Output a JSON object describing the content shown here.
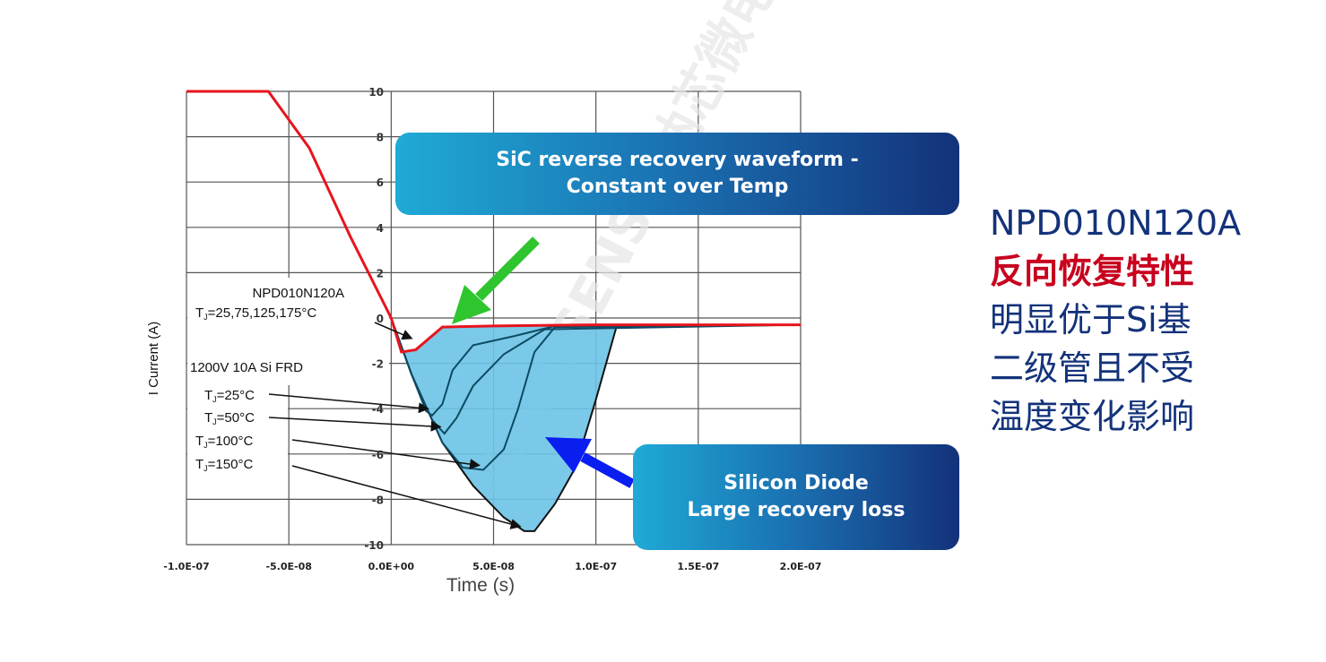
{
  "chart_data": {
    "type": "line",
    "xlabel": "Time (s)",
    "ylabel": "I Current (A)",
    "xlim": [
      -1e-07,
      2e-07
    ],
    "ylim": [
      -10,
      10
    ],
    "x_ticks": [
      "-1.0E-07",
      "-5.0E-08",
      "0.0E+00",
      "5.0E-08",
      "1.0E-07",
      "1.5E-07",
      "2.0E-07"
    ],
    "x_tick_values": [
      -1e-07,
      -5e-08,
      0,
      5e-08,
      1e-07,
      1.5e-07,
      2e-07
    ],
    "y_ticks": [
      "10",
      "8",
      "6",
      "4",
      "2",
      "0",
      "-2",
      "-4",
      "-6",
      "-8",
      "-10"
    ],
    "y_tick_values": [
      10,
      8,
      6,
      4,
      2,
      0,
      -2,
      -4,
      -6,
      -8,
      -10
    ],
    "grid": true,
    "colors": {
      "sic": "#e8141c",
      "si": "#0d4a63",
      "fill": "#6cc3e6",
      "green_arrow": "#2ec52e",
      "blue_arrow": "#0a1ef0"
    },
    "series": [
      {
        "name": "NPD010N120A",
        "color": "#e8141c",
        "x": [
          -1e-07,
          -6e-08,
          -4e-08,
          -2e-08,
          0,
          5e-09,
          1.2e-08,
          2.5e-08,
          5e-08,
          1e-07,
          1.5e-07,
          2e-07
        ],
        "y": [
          10,
          10,
          7.5,
          3.6,
          0,
          -1.5,
          -1.4,
          -0.4,
          -0.35,
          -0.3,
          -0.3,
          -0.3
        ]
      },
      {
        "name": "TJ=25°C",
        "color": "#0d4a63",
        "x": [
          -1e-07,
          -6e-08,
          -4e-08,
          -2e-08,
          0,
          1e-08,
          1.7e-08,
          2e-08,
          2.5e-08,
          3e-08,
          4e-08,
          6e-08,
          8e-08,
          2e-07
        ],
        "y": [
          10,
          10,
          7.5,
          3.6,
          0,
          -2.5,
          -4.1,
          -4.3,
          -3.8,
          -2.3,
          -1.2,
          -0.8,
          -0.35,
          -0.3
        ]
      },
      {
        "name": "TJ=50°C",
        "color": "#0d4a63",
        "x": [
          -1e-07,
          -6e-08,
          -4e-08,
          -2e-08,
          0,
          1e-08,
          2e-08,
          2.6e-08,
          3.2e-08,
          4e-08,
          5.5e-08,
          7.5e-08,
          2e-07
        ],
        "y": [
          10,
          10,
          7.5,
          3.6,
          0,
          -2.5,
          -4.5,
          -5.1,
          -4.4,
          -3.0,
          -1.6,
          -0.5,
          -0.3
        ]
      },
      {
        "name": "TJ=100°C",
        "color": "#0d4a63",
        "x": [
          -1e-07,
          -6e-08,
          -4e-08,
          -2e-08,
          0,
          1e-08,
          2.5e-08,
          3.5e-08,
          4.5e-08,
          5.5e-08,
          6.2e-08,
          7e-08,
          8e-08,
          2e-07
        ],
        "y": [
          10,
          10,
          7.5,
          3.6,
          0,
          -2.5,
          -5.5,
          -6.6,
          -6.7,
          -5.8,
          -4.0,
          -1.5,
          -0.4,
          -0.3
        ]
      },
      {
        "name": "TJ=150°C",
        "color": "#0d4a63",
        "x": [
          -1e-07,
          -6e-08,
          -4e-08,
          -2e-08,
          0,
          1e-08,
          2.5e-08,
          4e-08,
          5.5e-08,
          6.5e-08,
          7e-08,
          8e-08,
          9e-08,
          1e-07,
          1.1e-07,
          2e-07
        ],
        "y": [
          10,
          10,
          7.5,
          3.6,
          0,
          -2.5,
          -5.5,
          -7.4,
          -8.8,
          -9.4,
          -9.4,
          -8.2,
          -6.6,
          -3.6,
          -0.4,
          -0.3
        ]
      }
    ],
    "annotations": {
      "sic_device": "NPD010N120A",
      "sic_temps": "=25,75,125,175°C",
      "si_device": "1200V 10A  Si FRD",
      "si_temps": [
        "=25°C",
        "=50°C",
        "=100°C",
        "=150°C"
      ],
      "tj_symbol": "T",
      "tj_sub": "J"
    }
  },
  "callouts": {
    "sic": [
      "SiC reverse recovery waveform -",
      "Constant over Temp"
    ],
    "si": [
      "Silicon Diode",
      "Large recovery loss"
    ]
  },
  "side_text": {
    "line1": "NPD010N120A",
    "line2": "反向恢复特性",
    "line3": "明显优于Si基",
    "line4": "二级管且不受",
    "line5": "温度变化影响"
  },
  "watermark": "NOVOSENSE 纳芯微电子"
}
